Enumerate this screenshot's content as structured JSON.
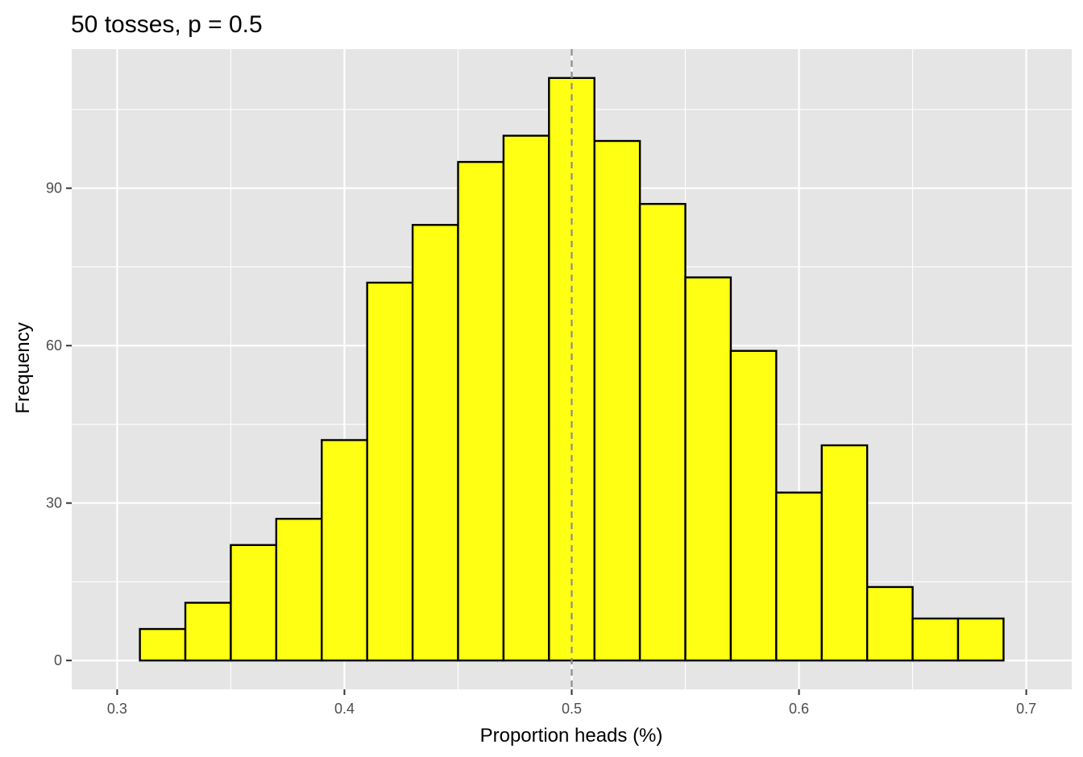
{
  "chart_data": {
    "type": "bar",
    "title": "50 tosses, p = 0.5",
    "xlabel": "Proportion heads (%)",
    "ylabel": "Frequency",
    "bin_width": 0.02,
    "bins": [
      {
        "start": 0.31,
        "end": 0.33,
        "count": 6
      },
      {
        "start": 0.33,
        "end": 0.35,
        "count": 11
      },
      {
        "start": 0.35,
        "end": 0.37,
        "count": 22
      },
      {
        "start": 0.37,
        "end": 0.39,
        "count": 27
      },
      {
        "start": 0.39,
        "end": 0.41,
        "count": 42
      },
      {
        "start": 0.41,
        "end": 0.43,
        "count": 72
      },
      {
        "start": 0.43,
        "end": 0.45,
        "count": 83
      },
      {
        "start": 0.45,
        "end": 0.47,
        "count": 95
      },
      {
        "start": 0.47,
        "end": 0.49,
        "count": 100
      },
      {
        "start": 0.49,
        "end": 0.51,
        "count": 111
      },
      {
        "start": 0.51,
        "end": 0.53,
        "count": 99
      },
      {
        "start": 0.53,
        "end": 0.55,
        "count": 87
      },
      {
        "start": 0.55,
        "end": 0.57,
        "count": 73
      },
      {
        "start": 0.57,
        "end": 0.59,
        "count": 59
      },
      {
        "start": 0.59,
        "end": 0.61,
        "count": 32
      },
      {
        "start": 0.61,
        "end": 0.63,
        "count": 41
      },
      {
        "start": 0.63,
        "end": 0.65,
        "count": 14
      },
      {
        "start": 0.65,
        "end": 0.67,
        "count": 8
      },
      {
        "start": 0.67,
        "end": 0.69,
        "count": 8
      }
    ],
    "xlim": [
      0.28,
      0.72
    ],
    "ylim": [
      -5.5,
      116.5
    ],
    "x_ticks": [
      0.3,
      0.4,
      0.5,
      0.6,
      0.7
    ],
    "x_tick_labels": [
      "0.3",
      "0.4",
      "0.5",
      "0.6",
      "0.7"
    ],
    "y_ticks": [
      0,
      30,
      60,
      90
    ],
    "y_tick_labels": [
      "0",
      "30",
      "60",
      "90"
    ],
    "reference_line": {
      "x": 0.5,
      "style": "dashed",
      "color": "#8c8c8c"
    },
    "grid": true,
    "legend": "none",
    "colors": {
      "bar_fill": "#ffff14",
      "bar_outline": "#000000",
      "panel_background": "#e5e5e5",
      "grid_line": "#ffffff"
    }
  }
}
